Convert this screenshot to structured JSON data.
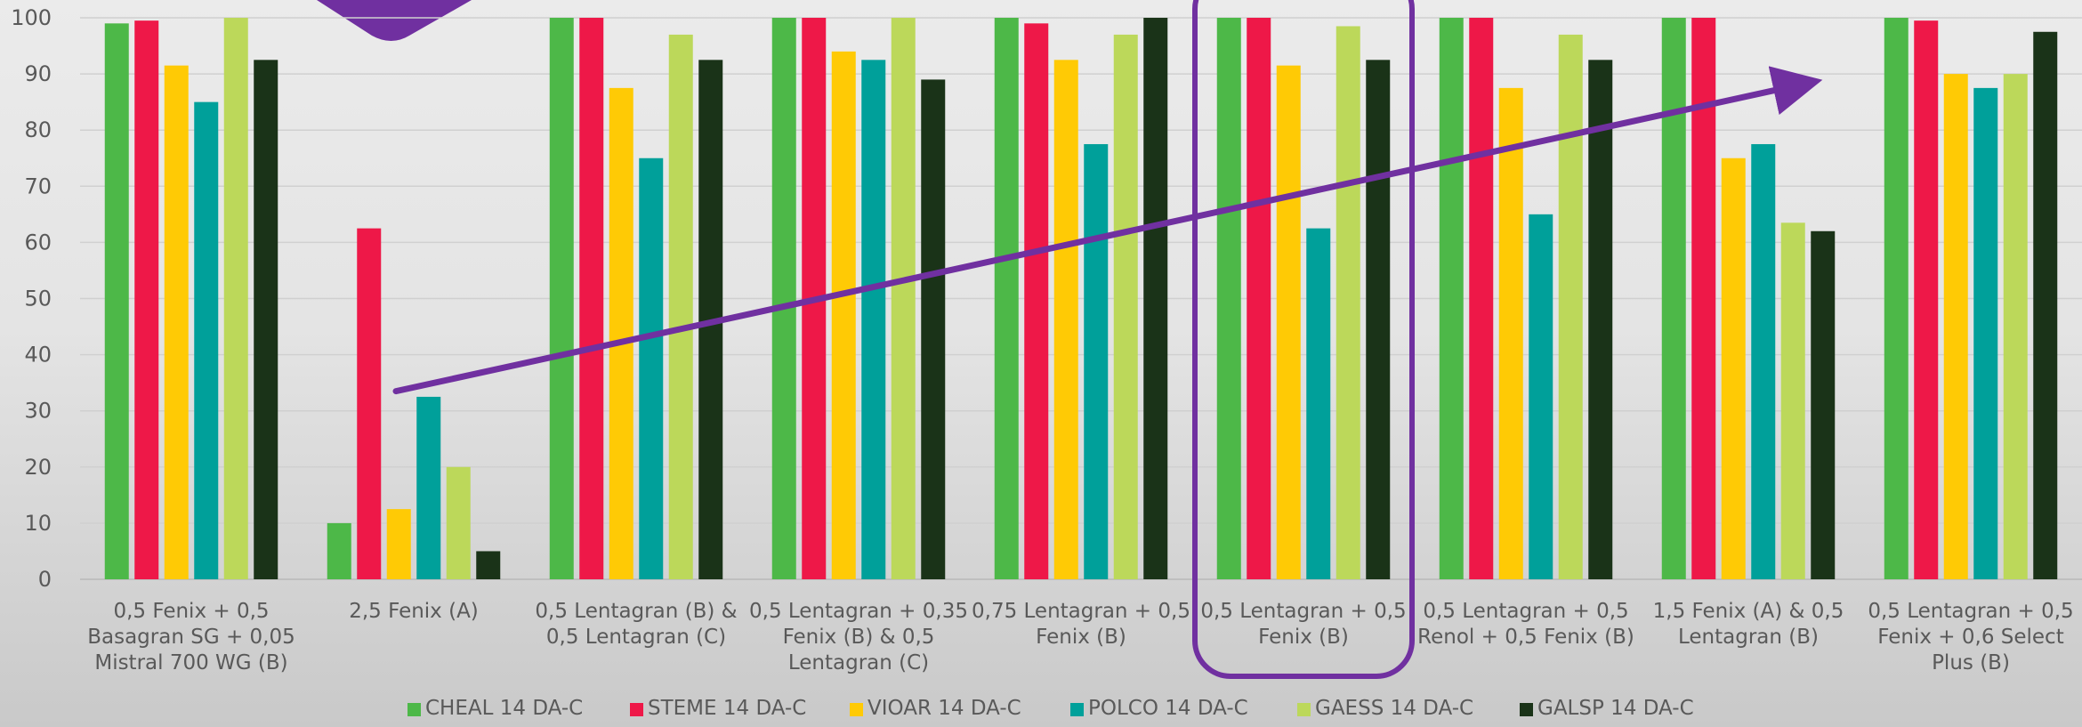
{
  "chart_data": {
    "type": "bar",
    "title": "",
    "xlabel": "",
    "ylabel": "",
    "ylim": [
      0,
      100
    ],
    "yticks": [
      0,
      10,
      20,
      30,
      40,
      50,
      60,
      70,
      80,
      90,
      100
    ],
    "grid": true,
    "legend_position": "bottom",
    "categories": [
      [
        "0,5 Fenix + 0,5",
        "Basagran SG + 0,05",
        "Mistral 700 WG (B)"
      ],
      [
        "2,5 Fenix (A)"
      ],
      [
        "0,5 Lentagran (B) &",
        "0,5 Lentagran (C)"
      ],
      [
        "0,5 Lentagran + 0,35",
        "Fenix (B) & 0,5",
        "Lentagran (C)"
      ],
      [
        "0,75 Lentagran + 0,5",
        "Fenix (B)"
      ],
      [
        "0,5 Lentagran + 0,5",
        "Fenix (B)"
      ],
      [
        "0,5 Lentagran + 0,5",
        "Renol + 0,5 Fenix (B)"
      ],
      [
        "1,5 Fenix (A) & 0,5",
        "Lentagran (B)"
      ],
      [
        "0,5 Lentagran + 0,5",
        "Fenix + 0,6 Select",
        "Plus (B)"
      ]
    ],
    "series": [
      {
        "name": "CHEAL 14 DA-C",
        "color": "#4db848",
        "values": [
          99,
          10,
          100,
          100,
          100,
          100,
          100,
          100,
          100
        ]
      },
      {
        "name": "STEME 14 DA-C",
        "color": "#ee1848",
        "values": [
          99.5,
          62.5,
          100,
          100,
          99,
          100,
          100,
          100,
          99.5
        ]
      },
      {
        "name": "VIOAR 14 DA-C",
        "color": "#ffca05",
        "values": [
          91.5,
          12.5,
          87.5,
          94,
          92.5,
          91.5,
          87.5,
          75,
          90
        ]
      },
      {
        "name": "POLCO 14 DA-C",
        "color": "#00a09a",
        "values": [
          85,
          32.5,
          75,
          92.5,
          77.5,
          62.5,
          65,
          77.5,
          87.5
        ]
      },
      {
        "name": "GAESS 14 DA-C",
        "color": "#bcd85a",
        "values": [
          100,
          20,
          97,
          100,
          97,
          98.5,
          97,
          63.5,
          90
        ]
      },
      {
        "name": "GALSP 14 DA-C",
        "color": "#1a3318",
        "values": [
          92.5,
          5,
          92.5,
          89,
          100,
          92.5,
          92.5,
          62,
          97.5
        ]
      }
    ],
    "annotations": {
      "arrow_color": "#7030a0",
      "trend_arrow": {
        "from": {
          "category_index": 1,
          "y": 33.5
        },
        "to": {
          "category_index": 7,
          "y": 88
        }
      },
      "highlight_box": {
        "category_index": 5
      }
    }
  }
}
